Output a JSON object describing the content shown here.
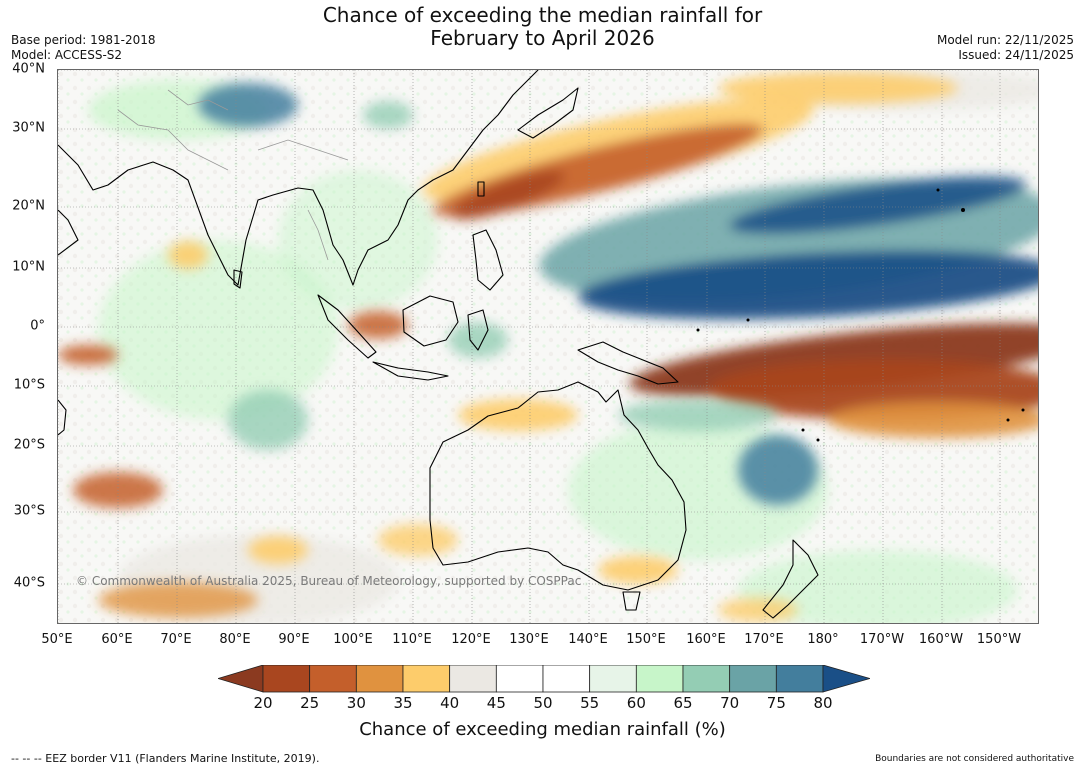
{
  "title": {
    "line1": "Chance of exceeding the median rainfall for",
    "line2": "February to April 2026"
  },
  "meta_left": {
    "base_period": "Base period: 1981-2018",
    "model": "Model: ACCESS-S2"
  },
  "meta_right": {
    "model_run": "Model run: 22/11/2025",
    "issued": "Issued: 24/11/2025"
  },
  "map": {
    "lat_labels": [
      "40°N",
      "30°N",
      "20°N",
      "10°N",
      "0°",
      "10°S",
      "20°S",
      "30°S",
      "40°S"
    ],
    "lon_labels": [
      "50°E",
      "60°E",
      "70°E",
      "80°E",
      "90°E",
      "100°E",
      "110°E",
      "120°E",
      "130°E",
      "140°E",
      "150°E",
      "160°E",
      "170°E",
      "180°",
      "170°W",
      "160°W",
      "150°W"
    ],
    "copyright": "© Commonwealth of Australia 2025, Bureau of Meteorology, supported by COSPPac"
  },
  "colorbar": {
    "ticks": [
      "20",
      "25",
      "30",
      "35",
      "40",
      "45",
      "50",
      "55",
      "60",
      "65",
      "70",
      "75",
      "80"
    ],
    "colors": [
      "#8b3a20",
      "#a9461f",
      "#c45f2b",
      "#e0923f",
      "#fdcc6b",
      "#ebe8e3",
      "#ffffff",
      "#ffffff",
      "#e7f4e8",
      "#c7f5c9",
      "#94cdb4",
      "#6aa3a6",
      "#437e9d",
      "#1a4f87"
    ],
    "title": "Chance of exceeding median rainfall (%)"
  },
  "footer": {
    "left": "--  --  -- EEZ border V11 (Flanders Marine Institute, 2019).",
    "right": "Boundaries are not considered authoritative"
  }
}
